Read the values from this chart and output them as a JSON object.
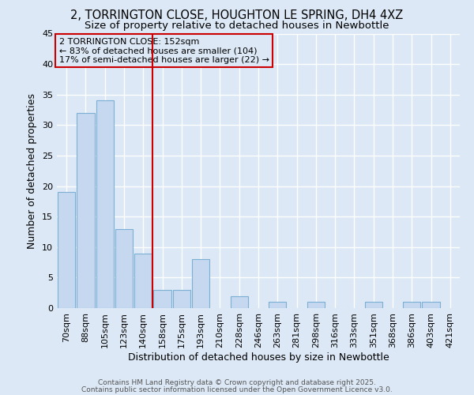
{
  "title_line1": "2, TORRINGTON CLOSE, HOUGHTON LE SPRING, DH4 4XZ",
  "title_line2": "Size of property relative to detached houses in Newbottle",
  "xlabel": "Distribution of detached houses by size in Newbottle",
  "ylabel": "Number of detached properties",
  "annotation_line1": "2 TORRINGTON CLOSE: 152sqm",
  "annotation_line2": "← 83% of detached houses are smaller (104)",
  "annotation_line3": "17% of semi-detached houses are larger (22) →",
  "bar_labels": [
    "70sqm",
    "88sqm",
    "105sqm",
    "123sqm",
    "140sqm",
    "158sqm",
    "175sqm",
    "193sqm",
    "210sqm",
    "228sqm",
    "246sqm",
    "263sqm",
    "281sqm",
    "298sqm",
    "316sqm",
    "333sqm",
    "351sqm",
    "368sqm",
    "386sqm",
    "403sqm",
    "421sqm"
  ],
  "bar_values": [
    19,
    32,
    34,
    13,
    9,
    3,
    3,
    8,
    0,
    2,
    0,
    1,
    0,
    1,
    0,
    0,
    1,
    0,
    1,
    1,
    0
  ],
  "bar_color": "#c5d8f0",
  "bar_edge_color": "#7bafd4",
  "vline_color": "#cc0000",
  "annotation_box_color": "#cc0000",
  "ylim": [
    0,
    45
  ],
  "yticks": [
    0,
    5,
    10,
    15,
    20,
    25,
    30,
    35,
    40,
    45
  ],
  "bg_color": "#dce8f5",
  "grid_color": "#ffffff",
  "footer_line1": "Contains HM Land Registry data © Crown copyright and database right 2025.",
  "footer_line2": "Contains public sector information licensed under the Open Government Licence v3.0.",
  "title_fontsize": 10.5,
  "subtitle_fontsize": 9.5,
  "tick_fontsize": 8,
  "axis_label_fontsize": 9,
  "annotation_fontsize": 8,
  "footer_fontsize": 6.5
}
